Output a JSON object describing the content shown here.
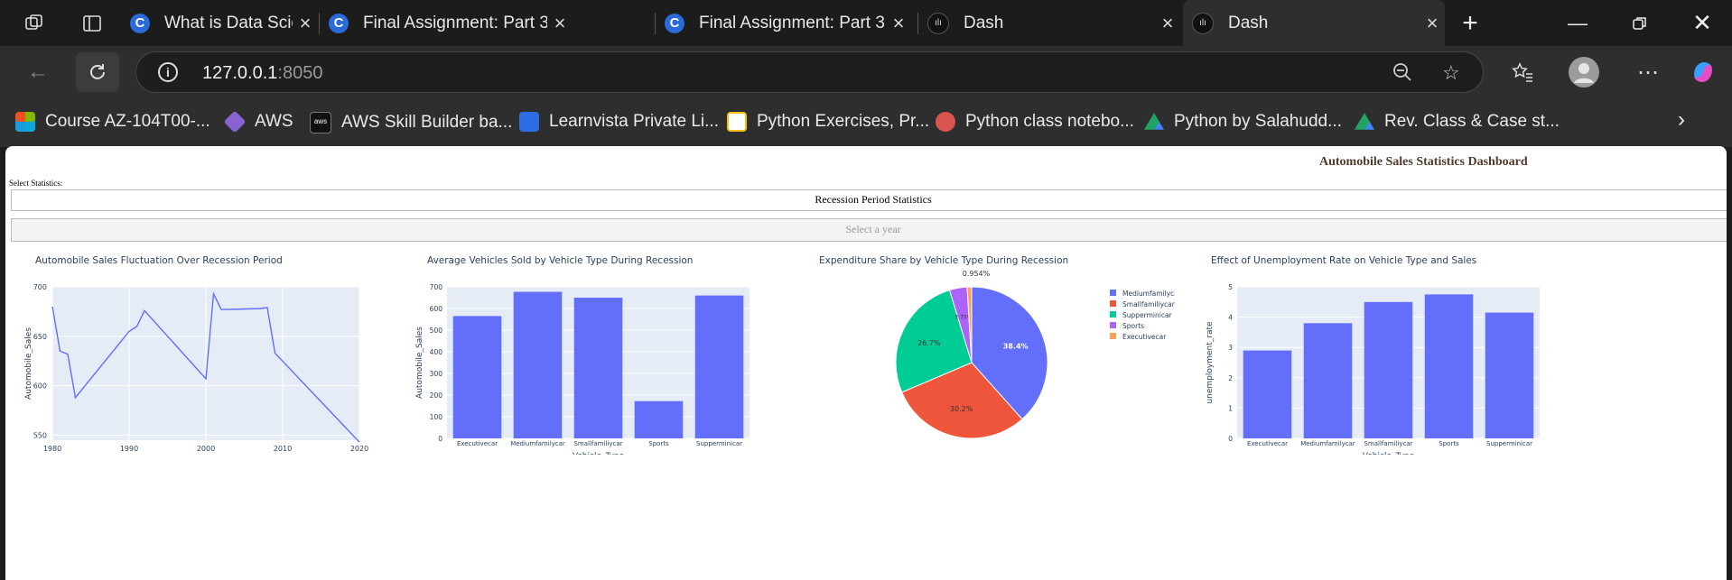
{
  "browser": {
    "tabs": [
      {
        "title": "What is Data Science? - D",
        "icon": "coursera-c-icon"
      },
      {
        "title": "Final Assignment: Part 3 -",
        "icon": "coursera-c-icon"
      },
      {
        "title": "Final Assignment: Part 3 -",
        "icon": "coursera-c-icon"
      },
      {
        "title": "Dash",
        "icon": "dash-icon"
      },
      {
        "title": "Dash",
        "icon": "dash-icon",
        "active": true
      }
    ],
    "url_host": "127.0.0.1",
    "url_port": ":8050",
    "bookmarks": [
      {
        "label": "Course AZ-104T00-...",
        "color": "#f25022"
      },
      {
        "label": "AWS",
        "color": "#8a63d2"
      },
      {
        "label": "AWS Skill Builder ba...",
        "color": "#232f3e"
      },
      {
        "label": "Learnvista Private Li...",
        "color": "#2e6be6"
      },
      {
        "label": "Python Exercises, Pr...",
        "color": "#f4c20d"
      },
      {
        "label": "Python class notebo...",
        "color": "#d9534f"
      },
      {
        "label": "Python by Salahudd...",
        "color": "#1fa463"
      },
      {
        "label": "Rev. Class & Case st...",
        "color": "#1fa463"
      }
    ]
  },
  "dashboard": {
    "title": "Automobile Sales Statistics Dashboard",
    "select_label": "Select Statistics:",
    "statistics_value": "Recession Period Statistics",
    "year_placeholder": "Select a year"
  },
  "chart_data": [
    {
      "type": "line",
      "title": "Automobile Sales Fluctuation Over Recession Period",
      "xlabel": "Year",
      "ylabel": "Automobile_Sales",
      "xlim": [
        1980,
        2020
      ],
      "ylim": [
        545,
        700
      ],
      "xticks": [
        1980,
        1990,
        2000,
        2010,
        2020
      ],
      "yticks": [
        550,
        600,
        650,
        700
      ],
      "x": [
        1980,
        1981,
        1982,
        1983,
        1990,
        1991,
        1992,
        2000,
        2001,
        2002,
        2007,
        2008,
        2009,
        2020
      ],
      "y": [
        680,
        635,
        632,
        588,
        655,
        660,
        676,
        607,
        693,
        677,
        678,
        679,
        633,
        543
      ],
      "color": "#636efa"
    },
    {
      "type": "bar",
      "title": "Average Vehicles Sold by Vehicle Type During Recession",
      "xlabel": "Vehicle_Type",
      "ylabel": "Automobile_Sales",
      "categories": [
        "Executivecar",
        "Mediumfamilycar",
        "Smallfamiliycar",
        "Sports",
        "Supperminicar"
      ],
      "values": [
        565,
        677,
        650,
        172,
        660
      ],
      "ylim": [
        0,
        700
      ],
      "yticks": [
        0,
        100,
        200,
        300,
        400,
        500,
        600,
        700
      ],
      "color": "#636efa"
    },
    {
      "type": "pie",
      "title": "Expenditure Share by Vehicle Type During Recession",
      "labels": [
        "Mediumfamilycar",
        "Smallfamiliycar",
        "Supperminicar",
        "Sports",
        "Executivecar"
      ],
      "values": [
        38.4,
        30.2,
        26.7,
        3.75,
        0.954
      ],
      "display_labels": [
        "38.4%",
        "30.2%",
        "26.7%",
        "3.75%",
        "0.954%"
      ],
      "colors": [
        "#636efa",
        "#ef553b",
        "#00cc96",
        "#ab63fa",
        "#ffa15a"
      ],
      "legend": "right"
    },
    {
      "type": "bar",
      "title": "Effect of Unemployment Rate on Vehicle Type and Sales",
      "xlabel": "Vehicle_Type",
      "ylabel": "unemployment_rate",
      "categories": [
        "Executivecar",
        "Mediumfamilycar",
        "Smallfamiliycar",
        "Sports",
        "Supperminicar"
      ],
      "values": [
        2.9,
        3.8,
        4.5,
        4.75,
        4.15
      ],
      "ylim": [
        0,
        5
      ],
      "yticks": [
        0,
        1,
        2,
        3,
        4,
        5
      ],
      "color": "#636efa"
    }
  ]
}
